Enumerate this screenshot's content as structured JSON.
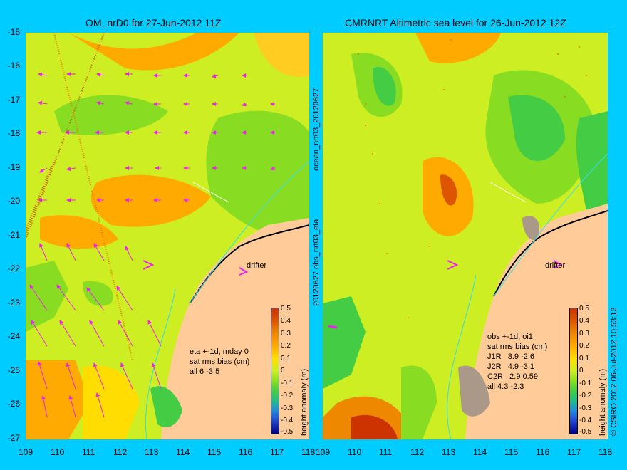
{
  "colors": {
    "background": "#00ccff",
    "land": "#ffcc99",
    "ocean_base": "#ccee22",
    "arrow": "#ee22ee",
    "track": "#ee7700",
    "dark_land": "#000000",
    "coast_line": "#33ddee"
  },
  "left_panel": {
    "title": "OM_nrD0 for 27-Jun-2012 11Z",
    "annotation": [
      "eta +-1d, mday 0",
      "sat rms bias (cm)",
      "all 6 -3.5"
    ],
    "drifter_label": "drifter",
    "side_label": "ocean_nrt03_20120627",
    "colorbar_label": "height anomaly (m)"
  },
  "right_panel": {
    "title": "CMRNRT Altimetric sea level  for 26-Jun-2012 12Z",
    "annotation": [
      "obs +-1d, oi1",
      "sat rms bias (cm)",
      "J1R   3.9 -2.6",
      "J2R   4.9 -3.1",
      "C2R   2.9 0.59",
      "all 4.3 -2.3"
    ],
    "drifter_label": "drifter",
    "side_label": "20120627 obs_nrt03_eta",
    "colorbar_label": "height anomaly (m)",
    "credit": "© CSIRO 2012  06-Jul-2012 10:53:13"
  },
  "axes": {
    "x_ticks": [
      "109",
      "110",
      "111",
      "112",
      "113",
      "114",
      "115",
      "116",
      "117",
      "118"
    ],
    "y_ticks": [
      "-15",
      "-16",
      "-17",
      "-18",
      "-19",
      "-20",
      "-21",
      "-22",
      "-23",
      "-24",
      "-25",
      "-26",
      "-27"
    ],
    "lon_range": [
      109,
      118
    ],
    "lat_range": [
      -27,
      -15
    ]
  },
  "colorbar": {
    "ticks": [
      "0.5",
      "0.4",
      "0.3",
      "0.2",
      "0.1",
      "0",
      "-0.1",
      "-0.2",
      "-0.3",
      "-0.4",
      "-0.5"
    ],
    "range": [
      -0.5,
      0.5
    ],
    "colors": [
      "#cc3300",
      "#dd5500",
      "#ee8800",
      "#ffaa00",
      "#ffdd00",
      "#ccee22",
      "#88dd22",
      "#44cc44",
      "#22bb88",
      "#2288dd",
      "#2244cc",
      "#000088"
    ]
  }
}
